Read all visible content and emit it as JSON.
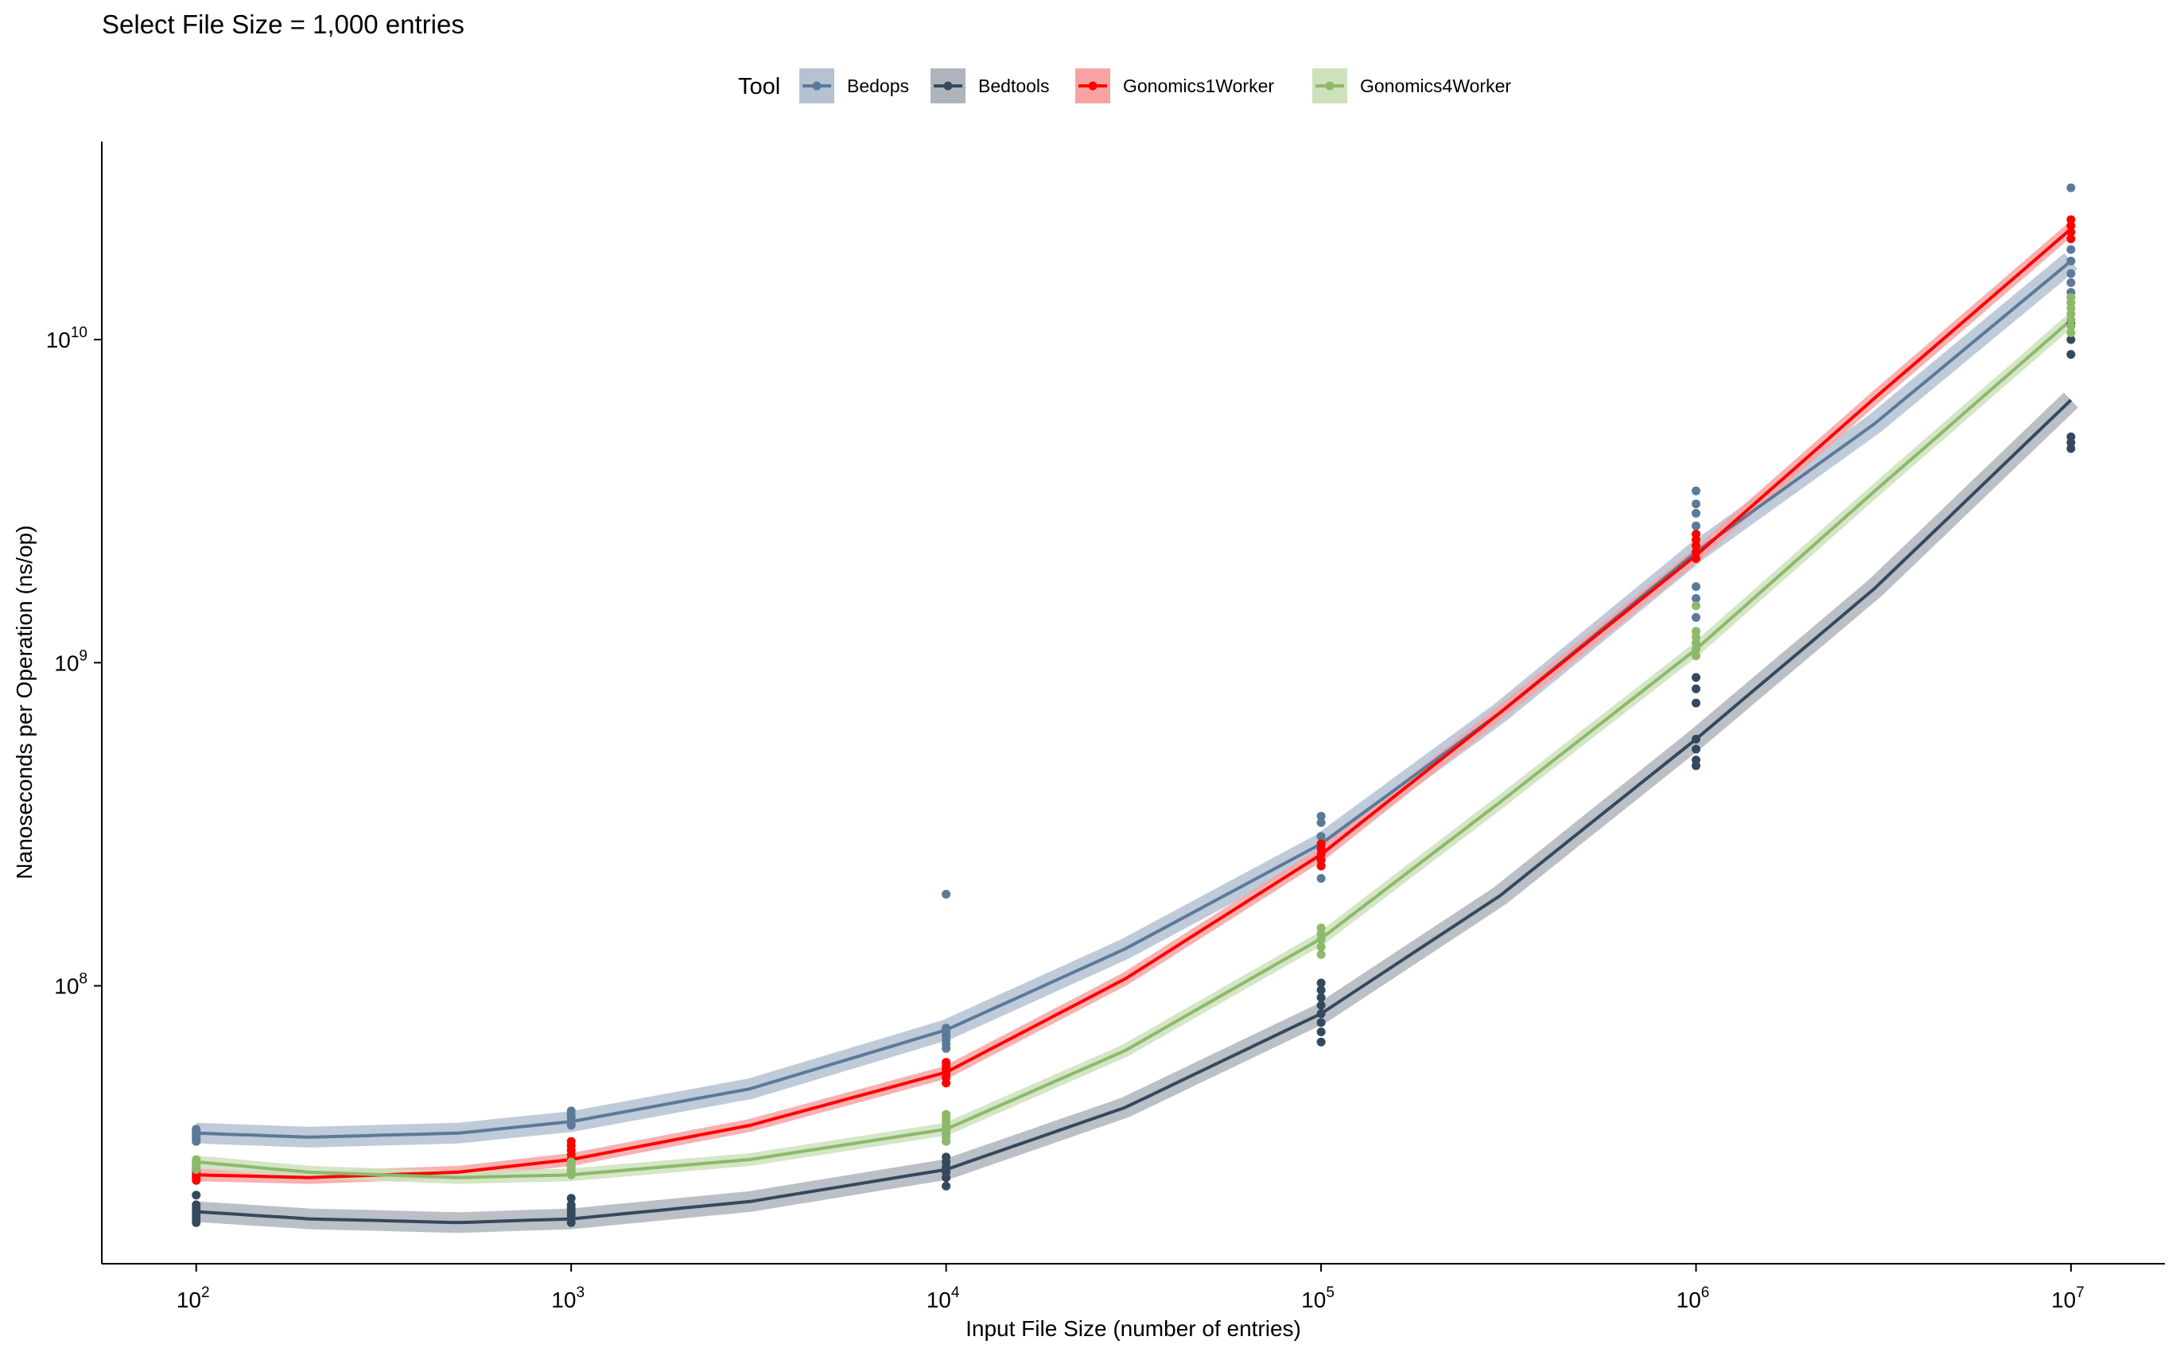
{
  "chart_data": {
    "type": "scatter",
    "title": "Select File Size = 1,000 entries",
    "xlabel": "Input File Size (number of entries)",
    "ylabel": "Nanoseconds per Operation (ns/op)",
    "x_scale": "log10",
    "y_scale": "log10",
    "xlim": [
      56,
      17800000
    ],
    "ylim": [
      13800000,
      41000000000
    ],
    "x_ticks": [
      {
        "value": 100,
        "base": "10",
        "exp": "2"
      },
      {
        "value": 1000,
        "base": "10",
        "exp": "3"
      },
      {
        "value": 10000,
        "base": "10",
        "exp": "4"
      },
      {
        "value": 100000,
        "base": "10",
        "exp": "5"
      },
      {
        "value": 1000000,
        "base": "10",
        "exp": "6"
      },
      {
        "value": 10000000,
        "base": "10",
        "exp": "7"
      }
    ],
    "y_ticks": [
      {
        "value": 100000000,
        "base": "10",
        "exp": "8"
      },
      {
        "value": 1000000000,
        "base": "10",
        "exp": "9"
      },
      {
        "value": 10000000000,
        "base": "10",
        "exp": "10"
      }
    ],
    "grid": false,
    "legend": {
      "title": "Tool",
      "position": "top"
    },
    "series": [
      {
        "name": "Bedops",
        "color": "#5B7A99",
        "band_color": "#B4C2D2",
        "points": [
          {
            "x": 100,
            "y": [
              33000000,
              33500000,
              34000000,
              34500000,
              35000000,
              35500000,
              36000000
            ]
          },
          {
            "x": 1000,
            "y": [
              37000000,
              38000000,
              39000000,
              40000000,
              41000000
            ]
          },
          {
            "x": 10000,
            "y": [
              64000000,
              66000000,
              68000000,
              70000000,
              72000000,
              74000000,
              192000000
            ]
          },
          {
            "x": 100000,
            "y": [
              215000000,
              235000000,
              255000000,
              270000000,
              290000000,
              320000000,
              335000000
            ]
          },
          {
            "x": 1000000,
            "y": [
              1380000000,
              1580000000,
              1720000000,
              2650000000,
              2900000000,
              3100000000,
              3400000000
            ]
          },
          {
            "x": 10000000,
            "y": [
              13000000000,
              14000000000,
              15000000000,
              16000000000,
              17500000000,
              19000000000,
              29500000000
            ]
          }
        ],
        "fit": [
          {
            "x": 100,
            "y": 35000000
          },
          {
            "x": 200,
            "y": 34000000
          },
          {
            "x": 500,
            "y": 35000000
          },
          {
            "x": 1000,
            "y": 38000000
          },
          {
            "x": 3000,
            "y": 48000000
          },
          {
            "x": 10000,
            "y": 73000000
          },
          {
            "x": 30000,
            "y": 130000000
          },
          {
            "x": 100000,
            "y": 275000000
          },
          {
            "x": 300000,
            "y": 700000000
          },
          {
            "x": 1000000,
            "y": 2200000000
          },
          {
            "x": 3000000,
            "y": 5500000000
          },
          {
            "x": 10000000,
            "y": 17500000000
          }
        ]
      },
      {
        "name": "Bedtools",
        "color": "#34495E",
        "band_color": "#AFB4BC",
        "points": [
          {
            "x": 100,
            "y": [
              18500000,
              19000000,
              19500000,
              20000000,
              20500000,
              21000000,
              22500000
            ]
          },
          {
            "x": 1000,
            "y": [
              18500000,
              19000000,
              19500000,
              20000000,
              20500000,
              21000000,
              22000000
            ]
          },
          {
            "x": 10000,
            "y": [
              24000000,
              25500000,
              26500000,
              27500000,
              28500000,
              29500000
            ]
          },
          {
            "x": 100000,
            "y": [
              67000000,
              72000000,
              77000000,
              82000000,
              87000000,
              92000000,
              97000000,
              102000000
            ]
          },
          {
            "x": 1000000,
            "y": [
              480000000,
              500000000,
              540000000,
              580000000,
              750000000,
              830000000,
              900000000
            ]
          },
          {
            "x": 10000000,
            "y": [
              4600000000,
              4800000000,
              5000000000,
              9000000000,
              10000000000,
              11200000000
            ]
          }
        ],
        "fit": [
          {
            "x": 100,
            "y": 20000000
          },
          {
            "x": 200,
            "y": 19000000
          },
          {
            "x": 500,
            "y": 18500000
          },
          {
            "x": 1000,
            "y": 19000000
          },
          {
            "x": 3000,
            "y": 21500000
          },
          {
            "x": 10000,
            "y": 27000000
          },
          {
            "x": 30000,
            "y": 42000000
          },
          {
            "x": 100000,
            "y": 82000000
          },
          {
            "x": 300000,
            "y": 190000000
          },
          {
            "x": 1000000,
            "y": 580000000
          },
          {
            "x": 3000000,
            "y": 1700000000
          },
          {
            "x": 10000000,
            "y": 6500000000
          }
        ]
      },
      {
        "name": "Gonomics1Worker",
        "color": "#FF0000",
        "band_color": "#F7A3A3",
        "points": [
          {
            "x": 100,
            "y": [
              25000000,
              25500000,
              26000000,
              26500000,
              27000000,
              27500000
            ]
          },
          {
            "x": 1000,
            "y": [
              28000000,
              29000000,
              30000000,
              31000000,
              32000000,
              33000000
            ]
          },
          {
            "x": 10000,
            "y": [
              50000000,
              52000000,
              53500000,
              55000000,
              56500000,
              58000000
            ]
          },
          {
            "x": 100000,
            "y": [
              235000000,
              245000000,
              255000000,
              265000000,
              275000000
            ]
          },
          {
            "x": 1000000,
            "y": [
              2100000000,
              2200000000,
              2300000000,
              2400000000,
              2500000000
            ]
          },
          {
            "x": 10000000,
            "y": [
              20500000000,
              21500000000,
              22500000000,
              23500000000
            ]
          }
        ],
        "fit": [
          {
            "x": 100,
            "y": 26000000
          },
          {
            "x": 200,
            "y": 25500000
          },
          {
            "x": 500,
            "y": 26500000
          },
          {
            "x": 1000,
            "y": 29000000
          },
          {
            "x": 3000,
            "y": 37000000
          },
          {
            "x": 10000,
            "y": 54000000
          },
          {
            "x": 30000,
            "y": 105000000
          },
          {
            "x": 100000,
            "y": 255000000
          },
          {
            "x": 300000,
            "y": 700000000
          },
          {
            "x": 1000000,
            "y": 2150000000
          },
          {
            "x": 3000000,
            "y": 6600000000
          },
          {
            "x": 10000000,
            "y": 22000000000
          }
        ]
      },
      {
        "name": "Gonomics4Worker",
        "color": "#8DB96A",
        "band_color": "#CDE2BC",
        "points": [
          {
            "x": 100,
            "y": [
              27000000,
              27500000,
              28000000,
              28500000,
              29000000
            ]
          },
          {
            "x": 1000,
            "y": [
              26000000,
              26500000,
              27000000,
              27500000,
              28000000,
              28500000
            ]
          },
          {
            "x": 10000,
            "y": [
              33000000,
              34000000,
              35000000,
              36000000,
              37000000,
              38000000,
              39000000,
              40000000
            ]
          },
          {
            "x": 100000,
            "y": [
              125000000,
              132000000,
              139000000,
              145000000,
              151000000
            ]
          },
          {
            "x": 1000000,
            "y": [
              1050000000,
              1100000000,
              1150000000,
              1200000000,
              1250000000,
              1500000000
            ]
          },
          {
            "x": 10000000,
            "y": [
              10500000000,
              11000000000,
              11500000000,
              12000000000,
              12500000000,
              13000000000,
              13500000000
            ]
          }
        ],
        "fit": [
          {
            "x": 100,
            "y": 28500000
          },
          {
            "x": 200,
            "y": 26500000
          },
          {
            "x": 500,
            "y": 25500000
          },
          {
            "x": 1000,
            "y": 26000000
          },
          {
            "x": 3000,
            "y": 29000000
          },
          {
            "x": 10000,
            "y": 36000000
          },
          {
            "x": 30000,
            "y": 63000000
          },
          {
            "x": 100000,
            "y": 140000000
          },
          {
            "x": 300000,
            "y": 370000000
          },
          {
            "x": 1000000,
            "y": 1100000000
          },
          {
            "x": 3000000,
            "y": 3400000000
          },
          {
            "x": 10000000,
            "y": 11500000000
          }
        ]
      }
    ]
  }
}
